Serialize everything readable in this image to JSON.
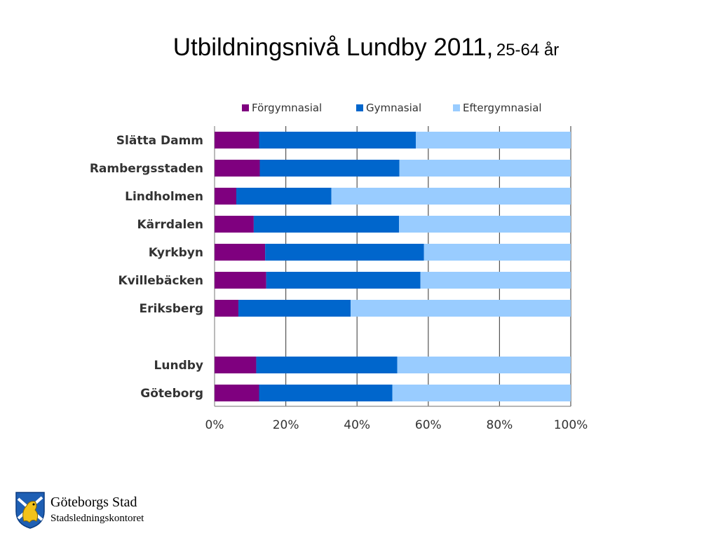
{
  "chart_data": {
    "type": "bar",
    "orientation": "horizontal",
    "stacked": true,
    "title": "Utbildningsnivå Lundby 2011,",
    "subtitle": "25-64 år",
    "categories": [
      "Slätta Damm",
      "Rambergsstaden",
      "Lindholmen",
      "Kärrdalen",
      "Kyrkbyn",
      "Kvillebäcken",
      "Eriksberg",
      "Lundby",
      "Göteborg"
    ],
    "series": [
      {
        "name": "Förgymnasial",
        "color": "#7F007F",
        "values": [
          12.5,
          12.7,
          6.1,
          11.0,
          14.2,
          14.5,
          6.7,
          11.7,
          12.5
        ]
      },
      {
        "name": "Gymnasial",
        "color": "#0066CC",
        "values": [
          44.0,
          39.2,
          26.7,
          40.8,
          44.6,
          43.3,
          31.5,
          39.6,
          37.4
        ]
      },
      {
        "name": "Eftergymnasial",
        "color": "#99CCFF",
        "values": [
          43.5,
          48.1,
          67.2,
          48.2,
          41.2,
          42.2,
          61.8,
          48.7,
          50.1
        ]
      }
    ],
    "xlim": [
      0,
      100
    ],
    "x_ticks": [
      "0%",
      "20%",
      "40%",
      "60%",
      "80%",
      "100%"
    ],
    "grid": true,
    "legend_position": "top"
  },
  "logo": {
    "org": "Göteborgs Stad",
    "dept": "Stadsledningskontoret",
    "emblem": "lion-crest-icon"
  }
}
